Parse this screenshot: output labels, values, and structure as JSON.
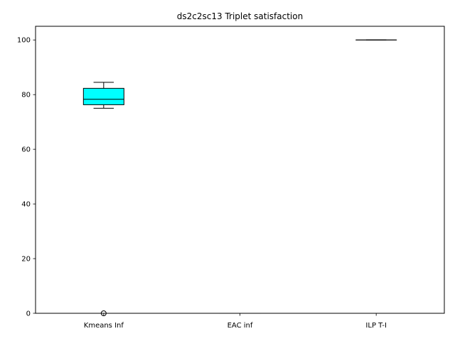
{
  "chart_data": {
    "type": "box",
    "title": "ds2c2sc13 Triplet satisfaction",
    "xlabel": "",
    "ylabel": "",
    "ylim": [
      0,
      105
    ],
    "yticks": [
      0,
      20,
      40,
      60,
      80,
      100
    ],
    "grid": false,
    "categories": [
      "Kmeans Inf",
      "EAC inf",
      "ILP T-I"
    ],
    "boxes": [
      {
        "category": "Kmeans Inf",
        "whisker_low": 75.0,
        "q1": 76.3,
        "median": 78.3,
        "q3": 82.3,
        "whisker_high": 84.5,
        "outliers": [
          0
        ],
        "fill": "#00ffff"
      },
      {
        "category": "EAC inf",
        "whisker_low": 0,
        "q1": 0,
        "median": 0,
        "q3": 0,
        "whisker_high": 0,
        "outliers": [],
        "fill": "#00ffff"
      },
      {
        "category": "ILP T-I",
        "whisker_low": 100,
        "q1": 100,
        "median": 100,
        "q3": 100,
        "whisker_high": 100,
        "outliers": [],
        "fill": "#00ffff"
      }
    ]
  }
}
